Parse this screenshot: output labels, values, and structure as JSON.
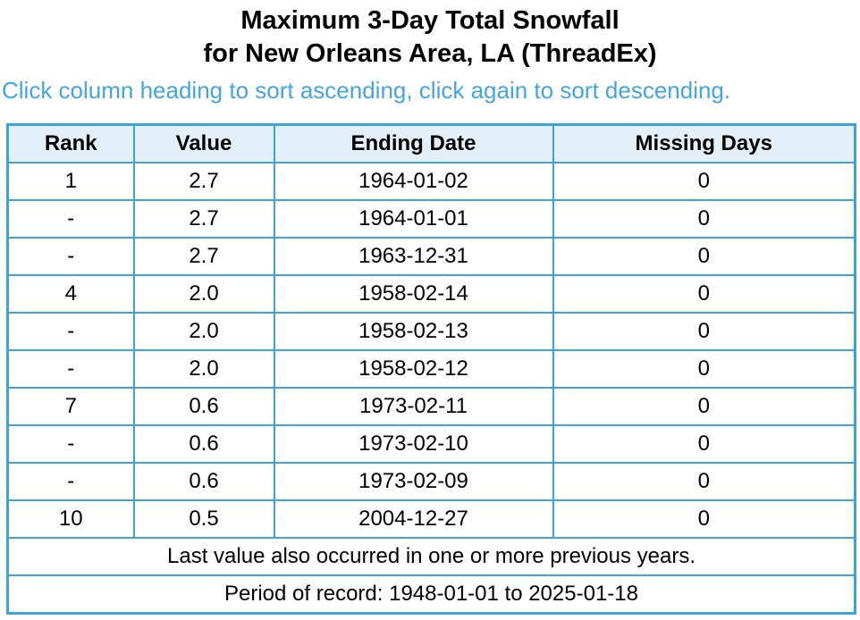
{
  "header": {
    "title_line1": "Maximum 3-Day Total Snowfall",
    "title_line2": "for New Orleans Area, LA (ThreadEx)",
    "sort_instructions": "Click column heading to sort ascending, click again to sort descending."
  },
  "table": {
    "columns": [
      "Rank",
      "Value",
      "Ending Date",
      "Missing Days"
    ],
    "rows": [
      [
        "1",
        "2.7",
        "1964-01-02",
        "0"
      ],
      [
        "-",
        "2.7",
        "1964-01-01",
        "0"
      ],
      [
        "-",
        "2.7",
        "1963-12-31",
        "0"
      ],
      [
        "4",
        "2.0",
        "1958-02-14",
        "0"
      ],
      [
        "-",
        "2.0",
        "1958-02-13",
        "0"
      ],
      [
        "-",
        "2.0",
        "1958-02-12",
        "0"
      ],
      [
        "7",
        "0.6",
        "1973-02-11",
        "0"
      ],
      [
        "-",
        "0.6",
        "1973-02-10",
        "0"
      ],
      [
        "-",
        "0.6",
        "1973-02-09",
        "0"
      ],
      [
        "10",
        "0.5",
        "2004-12-27",
        "0"
      ]
    ],
    "footnotes": [
      "Last value also occurred in one or more previous years.",
      "Period of record: 1948-01-01 to 2025-01-18"
    ]
  },
  "colors": {
    "border_blue": "#3fa3da",
    "header_row_bg": "#e3f0f9",
    "instructions_blue": "#45a6de",
    "text": "#000000"
  }
}
